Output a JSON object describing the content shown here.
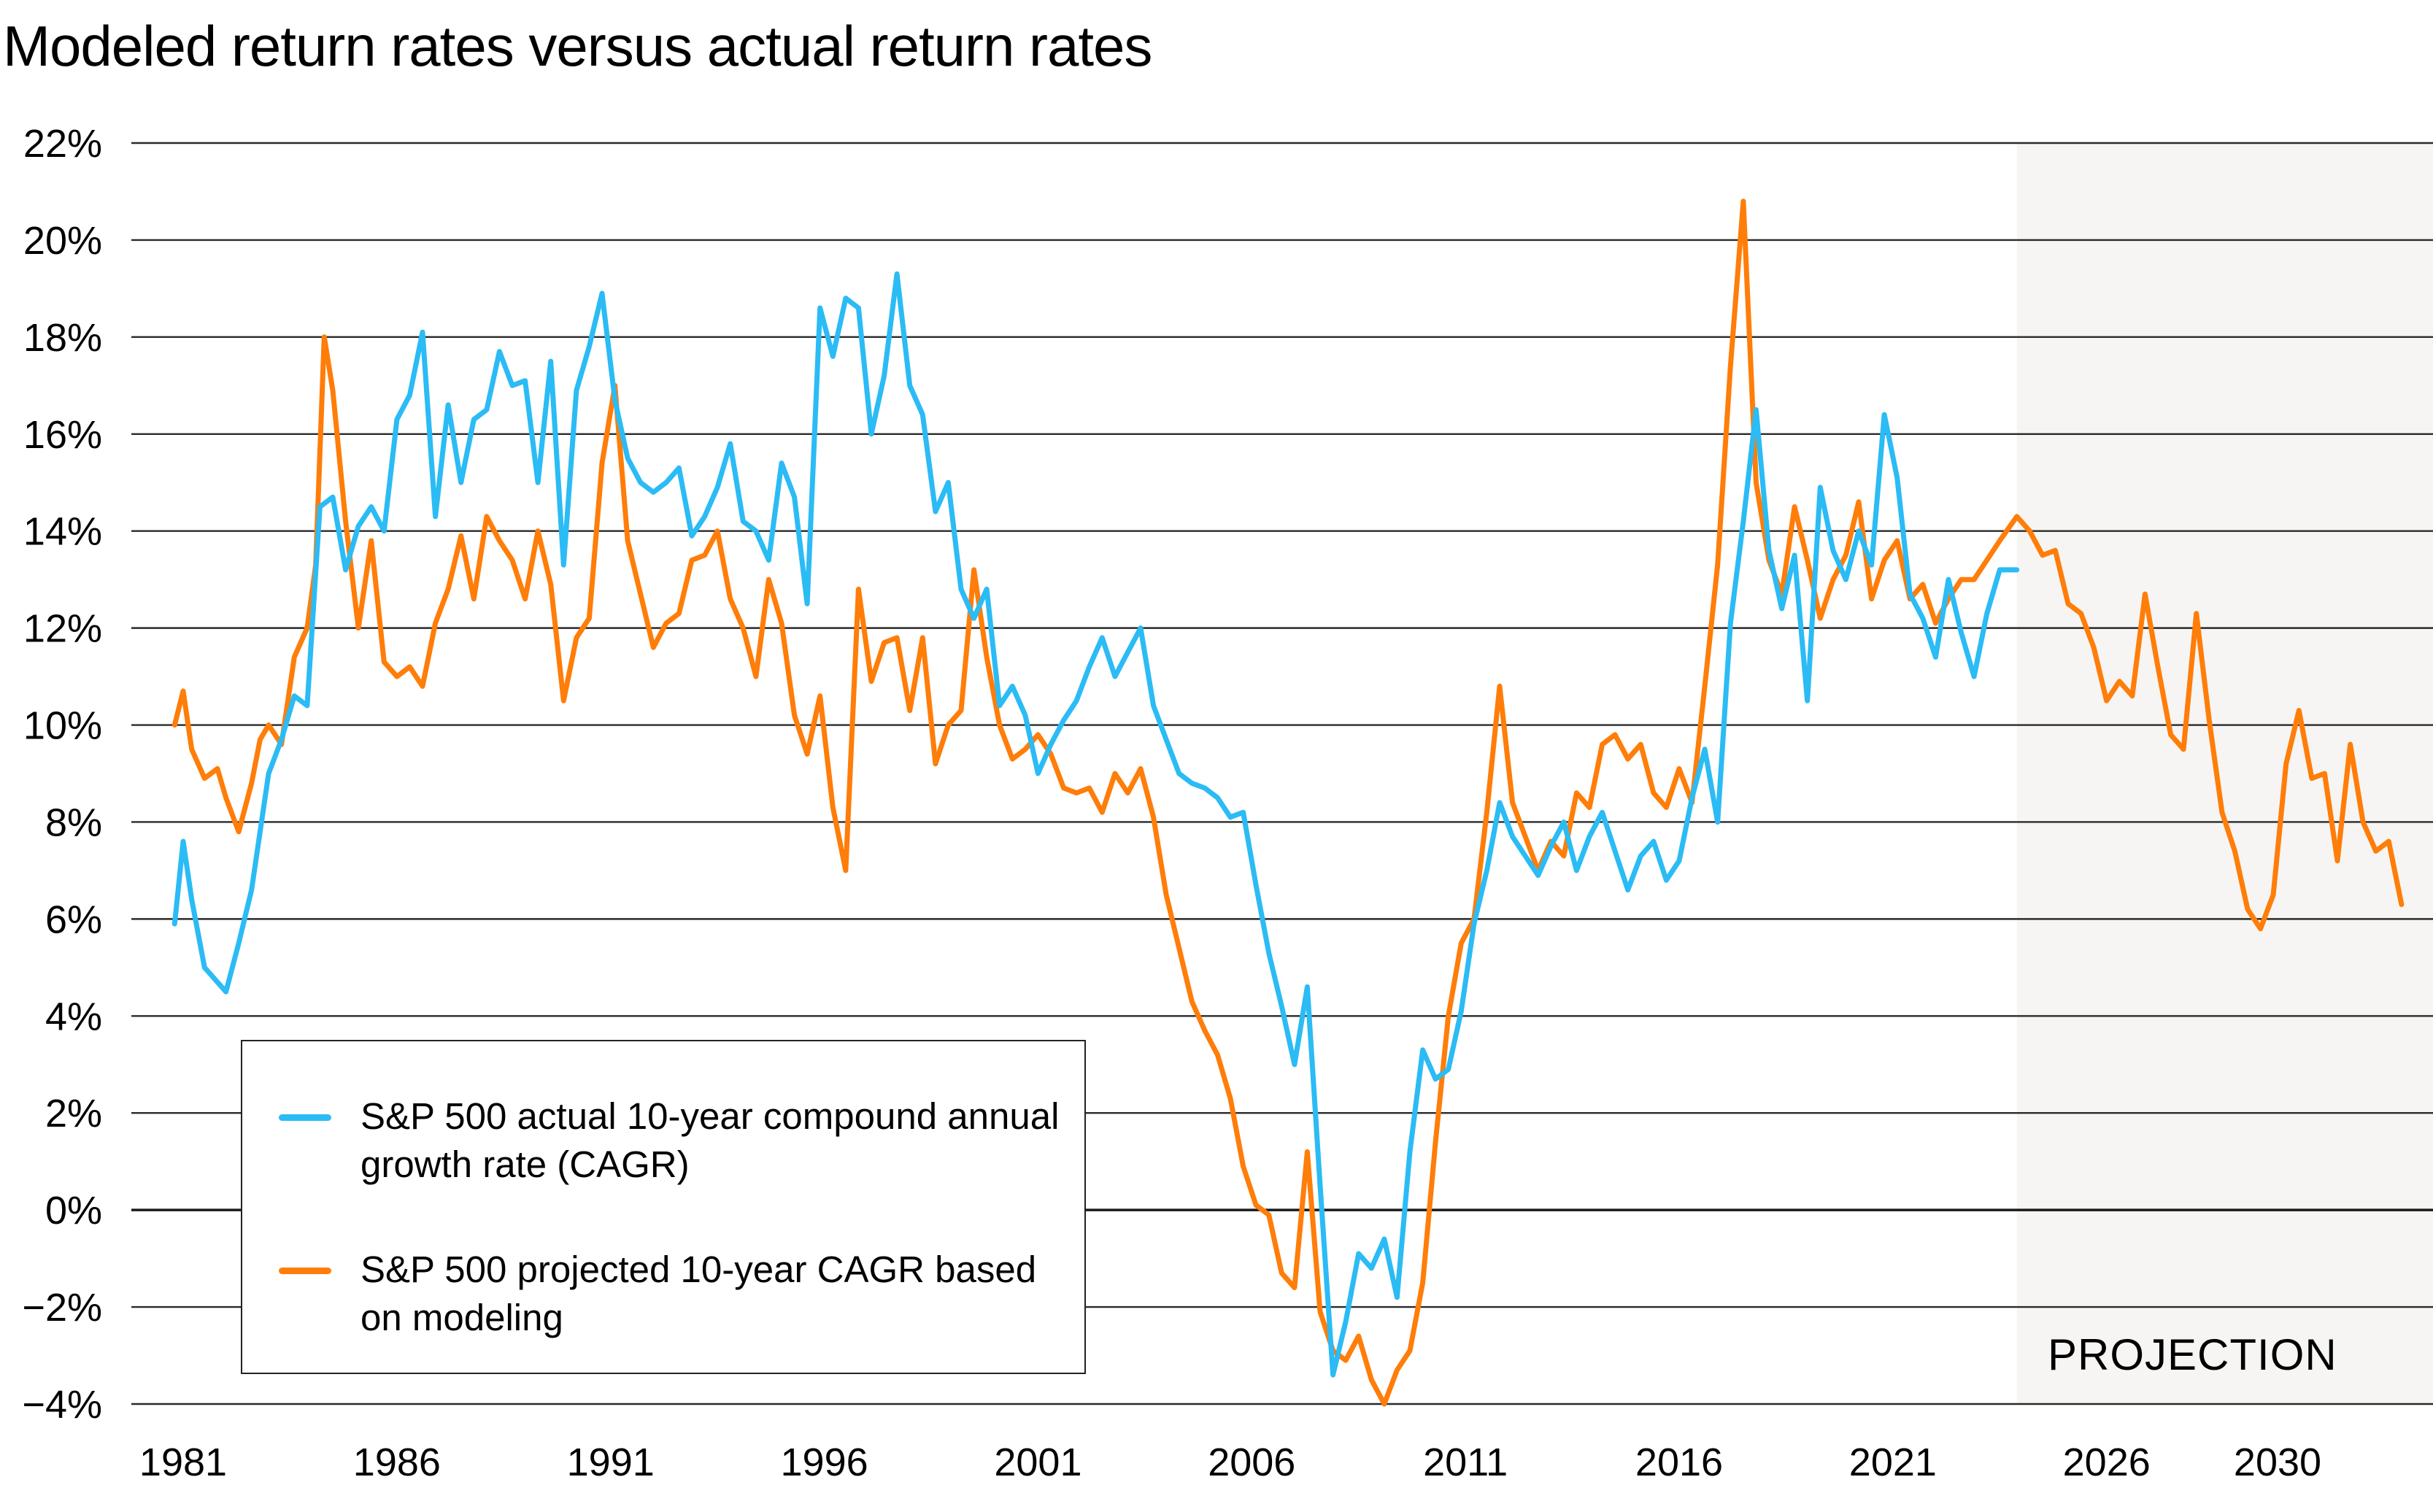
{
  "chart_data": {
    "type": "line",
    "title": "Modeled return rates versus actual return rates",
    "xlabel": "",
    "ylabel": "",
    "ylim": [
      -4,
      22
    ],
    "xlim": [
      1980.6,
      2033.6
    ],
    "yticks": [
      22,
      20,
      18,
      16,
      14,
      12,
      10,
      8,
      6,
      4,
      2,
      0,
      -2,
      -4
    ],
    "ytick_labels": [
      "22%",
      "20%",
      "18%",
      "16%",
      "14%",
      "12%",
      "10%",
      "8%",
      "6%",
      "4%",
      "2%",
      "0%",
      "−2%",
      "−4%"
    ],
    "xticks": [
      1981,
      1986,
      1991,
      1996,
      2001,
      2006,
      2011,
      2016,
      2021,
      2026,
      2030
    ],
    "xtick_labels": [
      "1981",
      "1986",
      "1991",
      "1996",
      "2001",
      "2006",
      "2011",
      "2016",
      "2021",
      "2026",
      "2030"
    ],
    "grid": true,
    "legend_position": "bottom-left",
    "projection_region": {
      "start": 2023.9,
      "end": 2033.6,
      "label": "PROJECTION",
      "fill": "#f6f5f3"
    },
    "series": [
      {
        "name": "S&P 500 actual 10-year compound annual growth rate (CAGR)",
        "color": "#2bbbf5",
        "x": [
          1980.8,
          1981.0,
          1981.2,
          1981.5,
          1981.8,
          1982.0,
          1982.3,
          1982.6,
          1982.8,
          1983.0,
          1983.3,
          1983.6,
          1983.9,
          1984.2,
          1984.5,
          1984.8,
          1985.1,
          1985.4,
          1985.7,
          1986.0,
          1986.3,
          1986.6,
          1986.9,
          1987.2,
          1987.5,
          1987.8,
          1988.1,
          1988.4,
          1988.7,
          1989.0,
          1989.3,
          1989.6,
          1989.9,
          1990.2,
          1990.5,
          1990.8,
          1991.1,
          1991.4,
          1991.7,
          1992.0,
          1992.3,
          1992.6,
          1992.9,
          1993.2,
          1993.5,
          1993.8,
          1994.1,
          1994.4,
          1994.7,
          1995.0,
          1995.3,
          1995.6,
          1995.9,
          1996.2,
          1996.5,
          1996.8,
          1997.1,
          1997.4,
          1997.7,
          1998.0,
          1998.3,
          1998.6,
          1998.9,
          1999.2,
          1999.5,
          1999.8,
          2000.1,
          2000.4,
          2000.7,
          2001.0,
          2001.3,
          2001.6,
          2001.9,
          2002.2,
          2002.5,
          2002.8,
          2003.1,
          2003.4,
          2003.7,
          2004.0,
          2004.3,
          2004.6,
          2004.9,
          2005.2,
          2005.5,
          2005.8,
          2006.1,
          2006.4,
          2006.7,
          2007.0,
          2007.3,
          2007.6,
          2007.9,
          2008.2,
          2008.5,
          2008.8,
          2009.1,
          2009.4,
          2009.7,
          2010.0,
          2010.3,
          2010.6,
          2010.9,
          2011.2,
          2011.5,
          2011.8,
          2012.1,
          2012.4,
          2012.7,
          2013.0,
          2013.3,
          2013.6,
          2013.9,
          2014.2,
          2014.5,
          2014.8,
          2015.1,
          2015.4,
          2015.7,
          2016.0,
          2016.3,
          2016.6,
          2016.9,
          2017.2,
          2017.5,
          2017.8,
          2018.1,
          2018.4,
          2018.7,
          2019.0,
          2019.3,
          2019.6,
          2019.9,
          2020.2,
          2020.5,
          2020.8,
          2021.1,
          2021.4,
          2021.7,
          2022.0,
          2022.3,
          2022.6,
          2022.9,
          2023.2,
          2023.5,
          2023.9
        ],
        "y": [
          5.9,
          7.6,
          6.4,
          5.0,
          4.7,
          4.5,
          5.5,
          6.6,
          7.8,
          9.0,
          9.7,
          10.6,
          10.4,
          14.5,
          14.7,
          13.2,
          14.1,
          14.5,
          14.0,
          16.3,
          16.8,
          18.1,
          14.3,
          16.6,
          15.0,
          16.3,
          16.5,
          17.7,
          17.0,
          17.1,
          15.0,
          17.5,
          13.3,
          16.9,
          17.8,
          18.9,
          16.7,
          15.5,
          15.0,
          14.8,
          15.0,
          15.3,
          13.9,
          14.3,
          14.9,
          15.8,
          14.2,
          14.0,
          13.4,
          15.4,
          14.7,
          12.5,
          18.6,
          17.6,
          18.8,
          18.6,
          16.0,
          17.2,
          19.3,
          17.0,
          16.4,
          14.4,
          15.0,
          12.8,
          12.2,
          12.8,
          10.4,
          10.8,
          10.2,
          9.0,
          9.6,
          10.1,
          10.5,
          11.2,
          11.8,
          11.0,
          11.5,
          12.0,
          10.4,
          9.7,
          9.0,
          8.8,
          8.7,
          8.5,
          8.1,
          8.2,
          6.7,
          5.3,
          4.2,
          3.0,
          4.6,
          0.5,
          -3.4,
          -2.3,
          -0.9,
          -1.2,
          -0.6,
          -1.8,
          1.2,
          3.3,
          2.7,
          2.9,
          4.1,
          5.9,
          7.0,
          8.4,
          7.7,
          7.3,
          6.9,
          7.5,
          8.0,
          7.0,
          7.7,
          8.2,
          7.4,
          6.6,
          7.3,
          7.6,
          6.8,
          7.2,
          8.5,
          9.5,
          8.0,
          12.1,
          14.2,
          16.5,
          13.6,
          12.4,
          13.5,
          10.5,
          14.9,
          13.6,
          13.0,
          14.0,
          13.3,
          16.4,
          15.1,
          12.7,
          12.2,
          11.4,
          13.0,
          11.9,
          11.0,
          12.3,
          13.2,
          13.2
        ]
      },
      {
        "name": "S&P 500 projected 10-year CAGR based on modeling",
        "color": "#ff7d09",
        "x": [
          1980.8,
          1981.0,
          1981.2,
          1981.5,
          1981.8,
          1982.0,
          1982.3,
          1982.6,
          1982.8,
          1983.0,
          1983.3,
          1983.6,
          1983.9,
          1984.1,
          1984.3,
          1984.5,
          1984.8,
          1985.1,
          1985.4,
          1985.7,
          1986.0,
          1986.3,
          1986.6,
          1986.9,
          1987.2,
          1987.5,
          1987.8,
          1988.1,
          1988.4,
          1988.7,
          1989.0,
          1989.3,
          1989.6,
          1989.9,
          1990.2,
          1990.5,
          1990.8,
          1991.1,
          1991.4,
          1991.7,
          1992.0,
          1992.3,
          1992.6,
          1992.9,
          1993.2,
          1993.5,
          1993.8,
          1994.1,
          1994.4,
          1994.7,
          1995.0,
          1995.3,
          1995.6,
          1995.9,
          1996.2,
          1996.5,
          1996.8,
          1997.1,
          1997.4,
          1997.7,
          1998.0,
          1998.3,
          1998.6,
          1998.9,
          1999.2,
          1999.5,
          1999.8,
          2000.1,
          2000.4,
          2000.7,
          2001.0,
          2001.3,
          2001.6,
          2001.9,
          2002.2,
          2002.5,
          2002.8,
          2003.1,
          2003.4,
          2003.7,
          2004.0,
          2004.3,
          2004.6,
          2004.9,
          2005.2,
          2005.5,
          2005.8,
          2006.1,
          2006.4,
          2006.7,
          2007.0,
          2007.3,
          2007.6,
          2007.9,
          2008.2,
          2008.5,
          2008.8,
          2009.1,
          2009.4,
          2009.7,
          2010.0,
          2010.3,
          2010.6,
          2010.9,
          2011.2,
          2011.5,
          2011.8,
          2012.1,
          2012.4,
          2012.7,
          2013.0,
          2013.3,
          2013.6,
          2013.9,
          2014.2,
          2014.5,
          2014.8,
          2015.1,
          2015.4,
          2015.7,
          2016.0,
          2016.3,
          2016.6,
          2016.9,
          2017.2,
          2017.5,
          2017.8,
          2018.1,
          2018.4,
          2018.7,
          2019.0,
          2019.3,
          2019.6,
          2019.9,
          2020.2,
          2020.5,
          2020.8,
          2021.1,
          2021.4,
          2021.7,
          2022.0,
          2022.3,
          2022.6,
          2022.9,
          2023.2,
          2023.5,
          2023.9,
          2024.2,
          2024.5,
          2024.8,
          2025.1,
          2025.4,
          2025.7,
          2026.0,
          2026.3,
          2026.6,
          2026.9,
          2027.2,
          2027.5,
          2027.8,
          2028.1,
          2028.4,
          2028.7,
          2029.0,
          2029.3,
          2029.6,
          2029.9,
          2030.2,
          2030.5,
          2030.8,
          2031.1,
          2031.4,
          2031.7,
          2032.0,
          2032.3,
          2032.6,
          2032.9
        ],
        "y": [
          10.0,
          10.7,
          9.5,
          8.9,
          9.1,
          8.5,
          7.8,
          8.8,
          9.7,
          10.0,
          9.6,
          11.4,
          12.0,
          13.3,
          18.0,
          16.9,
          14.2,
          12.0,
          13.8,
          11.3,
          11.0,
          11.2,
          10.8,
          12.1,
          12.8,
          13.9,
          12.6,
          14.3,
          13.8,
          13.4,
          12.6,
          14.0,
          12.9,
          10.5,
          11.8,
          12.2,
          15.4,
          17.0,
          13.8,
          12.7,
          11.6,
          12.1,
          12.3,
          13.4,
          13.5,
          14.0,
          12.6,
          12.0,
          11.0,
          13.0,
          12.1,
          10.2,
          9.4,
          10.6,
          8.3,
          7.0,
          12.8,
          10.9,
          11.7,
          11.8,
          10.3,
          11.8,
          9.2,
          10.0,
          10.3,
          13.2,
          11.4,
          10.0,
          9.3,
          9.5,
          9.8,
          9.4,
          8.7,
          8.6,
          8.7,
          8.2,
          9.0,
          8.6,
          9.1,
          8.1,
          6.5,
          5.4,
          4.3,
          3.7,
          3.2,
          2.3,
          0.9,
          0.1,
          -0.1,
          -1.3,
          -1.6,
          1.2,
          -2.1,
          -2.9,
          -3.1,
          -2.6,
          -3.5,
          -4.0,
          -3.3,
          -2.9,
          -1.5,
          1.4,
          4.0,
          5.5,
          6.0,
          8.2,
          10.8,
          8.4,
          7.7,
          7.0,
          7.6,
          7.3,
          8.6,
          8.3,
          9.6,
          9.8,
          9.3,
          9.6,
          8.6,
          8.3,
          9.1,
          8.4,
          10.8,
          13.3,
          17.4,
          20.8,
          15.0,
          13.4,
          12.7,
          14.5,
          13.4,
          12.2,
          13.0,
          13.5,
          14.6,
          12.6,
          13.4,
          13.8,
          12.6,
          12.9,
          12.1,
          12.6,
          13.0,
          13.0,
          13.4,
          13.8,
          14.3,
          14.0,
          13.5,
          13.6,
          12.5,
          12.3,
          11.6,
          10.5,
          10.9,
          10.6,
          12.7,
          11.2,
          9.8,
          9.5,
          12.3,
          10.1,
          8.2,
          7.4,
          6.2,
          5.8,
          6.5,
          9.2,
          10.3,
          8.9,
          9.0,
          7.2,
          9.6,
          8.0,
          7.4,
          7.6,
          6.3
        ]
      }
    ]
  },
  "legend": {
    "items": [
      {
        "label": "S&P 500 actual 10-year compound annual growth rate (CAGR)",
        "color": "#2bbbf5"
      },
      {
        "label": "S&P 500 projected 10-year CAGR based on modeling",
        "color": "#ff7d09"
      }
    ]
  }
}
